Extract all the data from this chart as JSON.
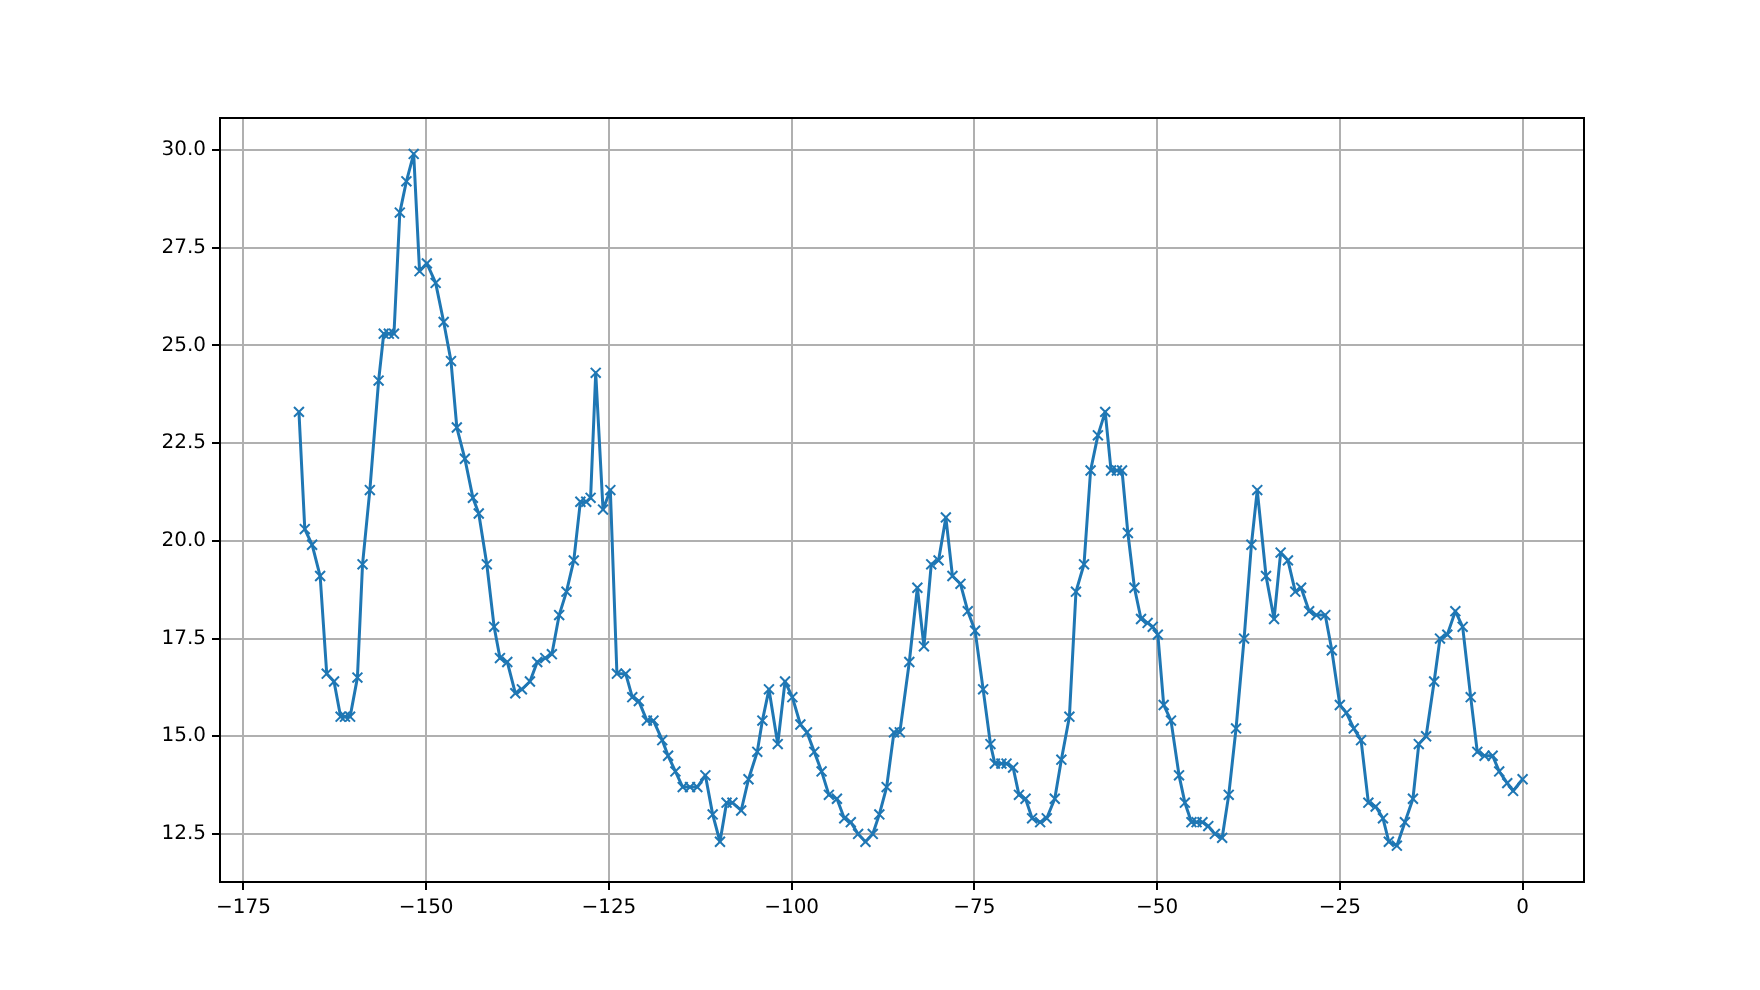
{
  "chart_data": {
    "type": "line",
    "x": [
      -167.4,
      -166.6,
      -165.6,
      -164.5,
      -163.6,
      -162.6,
      -161.7,
      -161.1,
      -160.4,
      -159.4,
      -158.7,
      -157.7,
      -156.5,
      -155.8,
      -155.1,
      -154.4,
      -153.6,
      -152.7,
      -151.7,
      -150.9,
      -149.9,
      -148.7,
      -147.6,
      -146.6,
      -145.8,
      -144.7,
      -143.6,
      -142.8,
      -141.7,
      -140.7,
      -139.9,
      -138.9,
      -137.8,
      -136.9,
      -135.8,
      -134.8,
      -133.7,
      -132.8,
      -131.8,
      -130.8,
      -129.8,
      -128.9,
      -128.1,
      -127.5,
      -126.8,
      -125.8,
      -124.8,
      -123.9,
      -122.7,
      -121.8,
      -120.9,
      -119.8,
      -118.9,
      -117.7,
      -116.9,
      -115.9,
      -114.9,
      -113.9,
      -112.9,
      -111.8,
      -110.8,
      -109.8,
      -108.9,
      -108.1,
      -106.9,
      -105.9,
      -104.7,
      -104.0,
      -103.1,
      -101.9,
      -100.9,
      -99.9,
      -98.8,
      -97.9,
      -96.9,
      -95.9,
      -94.9,
      -93.8,
      -92.8,
      -91.9,
      -90.9,
      -89.9,
      -88.9,
      -88.0,
      -87.0,
      -86.0,
      -85.2,
      -83.9,
      -82.8,
      -81.9,
      -80.9,
      -79.9,
      -78.9,
      -78.0,
      -76.9,
      -75.9,
      -74.9,
      -73.8,
      -72.8,
      -72.2,
      -71.3,
      -70.6,
      -69.7,
      -68.9,
      -68.0,
      -67.1,
      -66.0,
      -65.1,
      -64.0,
      -63.1,
      -62.0,
      -61.1,
      -60.0,
      -59.1,
      -58.1,
      -57.1,
      -56.3,
      -55.5,
      -54.8,
      -54.0,
      -53.1,
      -52.2,
      -51.3,
      -50.6,
      -49.9,
      -49.1,
      -48.1,
      -47.0,
      -46.2,
      -45.3,
      -44.6,
      -43.8,
      -43.0,
      -42.1,
      -41.1,
      -40.2,
      -39.2,
      -38.1,
      -37.1,
      -36.3,
      -35.1,
      -34.0,
      -33.1,
      -32.1,
      -31.1,
      -30.3,
      -29.2,
      -28.2,
      -27.0,
      -26.1,
      -25.0,
      -24.1,
      -23.1,
      -22.1,
      -21.1,
      -20.1,
      -19.1,
      -18.3,
      -17.2,
      -16.1,
      -15.0,
      -14.2,
      -13.2,
      -12.1,
      -11.3,
      -10.3,
      -9.2,
      -8.2,
      -7.1,
      -6.2,
      -5.2,
      -4.1,
      -3.2,
      -2.1,
      -1.3,
      0
    ],
    "series": [
      {
        "color": "#1f77b4",
        "values": [
          23.3,
          20.3,
          19.9,
          19.1,
          16.6,
          16.4,
          15.5,
          15.5,
          15.5,
          16.5,
          19.4,
          21.3,
          24.1,
          25.3,
          25.3,
          25.3,
          28.4,
          29.2,
          29.9,
          26.9,
          27.1,
          26.6,
          25.6,
          24.6,
          22.9,
          22.1,
          21.1,
          20.7,
          19.4,
          17.8,
          17.0,
          16.9,
          16.1,
          16.2,
          16.4,
          16.9,
          17.0,
          17.1,
          18.1,
          18.7,
          19.5,
          21.0,
          21.0,
          21.1,
          24.3,
          20.8,
          21.3,
          16.6,
          16.6,
          16.0,
          15.9,
          15.4,
          15.4,
          14.9,
          14.5,
          14.1,
          13.7,
          13.7,
          13.7,
          14.0,
          13.0,
          12.3,
          13.3,
          13.3,
          13.1,
          13.9,
          14.6,
          15.4,
          16.2,
          14.8,
          16.4,
          16.0,
          15.3,
          15.1,
          14.6,
          14.1,
          13.5,
          13.4,
          12.9,
          12.8,
          12.5,
          12.3,
          12.5,
          13.0,
          13.7,
          15.1,
          15.1,
          16.9,
          18.8,
          17.3,
          19.4,
          19.5,
          20.6,
          19.1,
          18.9,
          18.2,
          17.7,
          16.2,
          14.8,
          14.3,
          14.3,
          14.3,
          14.2,
          13.5,
          13.4,
          12.9,
          12.8,
          12.9,
          13.4,
          14.4,
          15.5,
          18.7,
          19.4,
          21.8,
          22.7,
          23.3,
          21.8,
          21.8,
          21.8,
          20.2,
          18.8,
          18.0,
          17.9,
          17.8,
          17.6,
          15.8,
          15.4,
          14.0,
          13.3,
          12.8,
          12.8,
          12.8,
          12.7,
          12.5,
          12.4,
          13.5,
          15.2,
          17.5,
          19.9,
          21.3,
          19.1,
          18.0,
          19.7,
          19.5,
          18.7,
          18.8,
          18.2,
          18.1,
          18.1,
          17.2,
          15.8,
          15.6,
          15.2,
          14.9,
          13.3,
          13.2,
          12.9,
          12.3,
          12.2,
          12.8,
          13.4,
          14.8,
          15.0,
          16.4,
          17.5,
          17.6,
          18.2,
          17.8,
          16.0,
          14.6,
          14.5,
          14.5,
          14.1,
          13.8,
          13.6,
          13.9
        ]
      }
    ],
    "xlim": [
      -178.2,
      8.4
    ],
    "xticks": [
      {
        "value": -175,
        "label": "−175"
      },
      {
        "value": -150,
        "label": "−150"
      },
      {
        "value": -125,
        "label": "−125"
      },
      {
        "value": -100,
        "label": "−100"
      },
      {
        "value": -75,
        "label": "−75"
      },
      {
        "value": -50,
        "label": "−50"
      },
      {
        "value": -25,
        "label": "−25"
      },
      0
    ],
    "ylim": [
      11.27,
      30.82
    ],
    "yticks": [
      {
        "value": 12.5,
        "label": "12.5"
      },
      {
        "value": 15,
        "label": "15.0"
      },
      {
        "value": 17.5,
        "label": "17.5"
      },
      {
        "value": 20,
        "label": "20.0"
      },
      {
        "value": 22.5,
        "label": "22.5"
      },
      {
        "value": 25,
        "label": "25.0"
      },
      {
        "value": 27.5,
        "label": "27.5"
      },
      {
        "value": 30,
        "label": "30.0"
      }
    ],
    "grid": true,
    "marker": "cross",
    "line_style": "solid"
  }
}
